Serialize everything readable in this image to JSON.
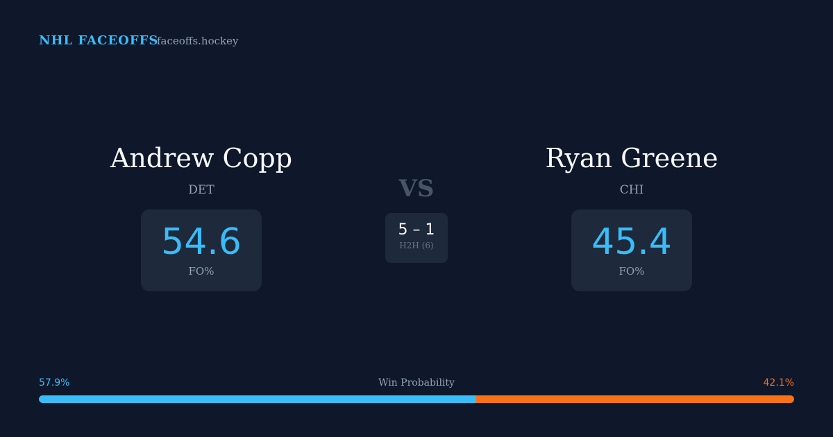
{
  "header": {
    "brand": "NHL FACEOFFS",
    "site": "faceoffs.hockey"
  },
  "players": [
    {
      "name": "Andrew Copp",
      "team": "DET",
      "fo_pct": 54.6,
      "fo_label": "FO%"
    },
    {
      "name": "Ryan Greene",
      "team": "CHI",
      "fo_pct": 45.4,
      "fo_label": "FO%"
    }
  ],
  "vs": "VS",
  "h2h": {
    "score": "5 – 1",
    "label": "H2H (6)"
  },
  "win_probability": {
    "title": "Win Probability",
    "left": {
      "value": 57.9,
      "label": "57.9%",
      "color": "#38bdf8"
    },
    "right": {
      "value": 42.1,
      "label": "42.1%",
      "color": "#f97316"
    }
  }
}
